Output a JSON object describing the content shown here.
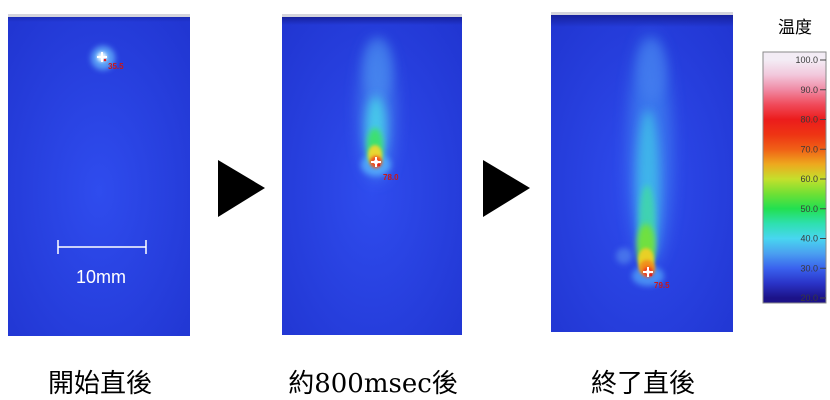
{
  "panels": [
    {
      "caption": "開始直後",
      "readout": "35.5"
    },
    {
      "caption": "約800msec後",
      "readout": "78.0"
    },
    {
      "caption": "終了直後",
      "readout": "79.5"
    }
  ],
  "scale_bar": {
    "label": "10mm"
  },
  "legend": {
    "title": "温度",
    "ticks": [
      "100.0",
      "90.0",
      "80.0",
      "70.0",
      "60.0",
      "50.0",
      "40.0",
      "30.0",
      "20.0"
    ],
    "colormap": [
      "#f3ecf5",
      "#f2c8dc",
      "#f08aa4",
      "#f04a5a",
      "#ec1c1c",
      "#ee3414",
      "#f06016",
      "#eea81e",
      "#c4e02c",
      "#70e034",
      "#22e050",
      "#2ee0b0",
      "#48d6f0",
      "#4aa0f0",
      "#3a62ee",
      "#2a34c8",
      "#1c1288"
    ]
  },
  "colors": {
    "readout": "#c81818"
  }
}
